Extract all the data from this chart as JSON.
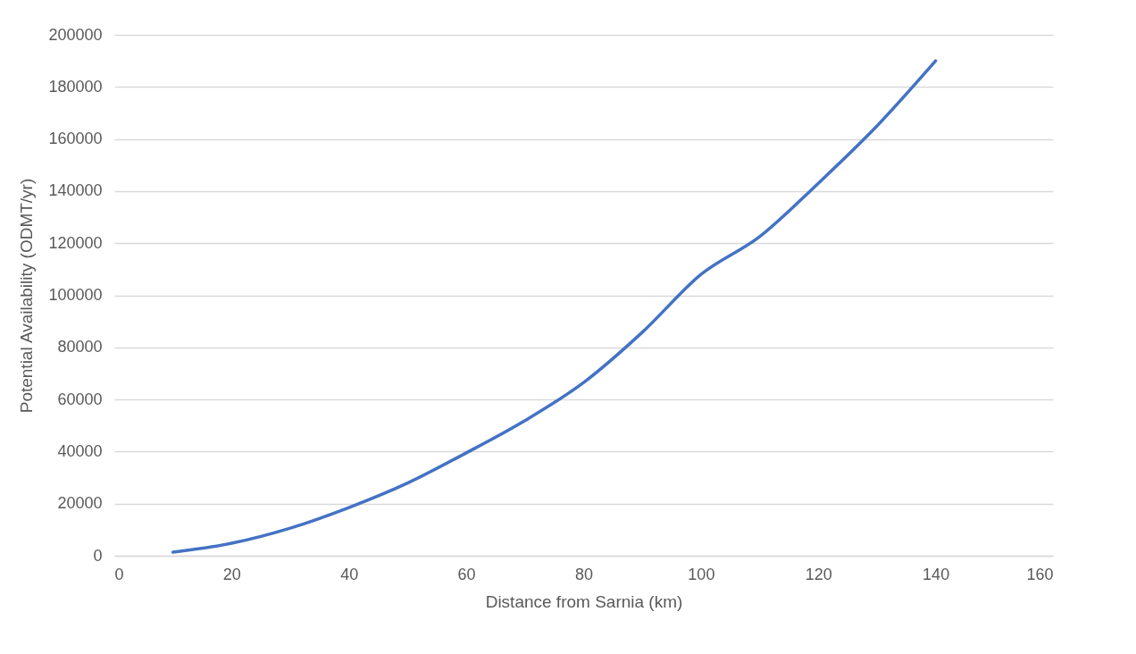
{
  "chart_data": {
    "type": "line",
    "xlabel": "Distance from Sarnia (km)",
    "ylabel": "Potential Availability (ODMT/yr)",
    "x": [
      10,
      20,
      30,
      40,
      50,
      60,
      70,
      80,
      90,
      100,
      110,
      120,
      130,
      140
    ],
    "series": [
      {
        "color": "#4472c4",
        "values": [
          1400,
          4800,
          10600,
          18500,
          27900,
          39500,
          51900,
          66500,
          85800,
          108000,
          122500,
          143000,
          165000,
          190000
        ]
      }
    ],
    "xlim": [
      0,
      160
    ],
    "xticks": [
      0,
      20,
      40,
      60,
      80,
      100,
      120,
      140,
      160
    ],
    "ylim": [
      0,
      200000
    ],
    "yticks": [
      0,
      20000,
      40000,
      60000,
      80000,
      100000,
      120000,
      140000,
      160000,
      180000,
      200000
    ],
    "grid": "y",
    "legend": false,
    "marker": "none",
    "line_style": "solid"
  }
}
